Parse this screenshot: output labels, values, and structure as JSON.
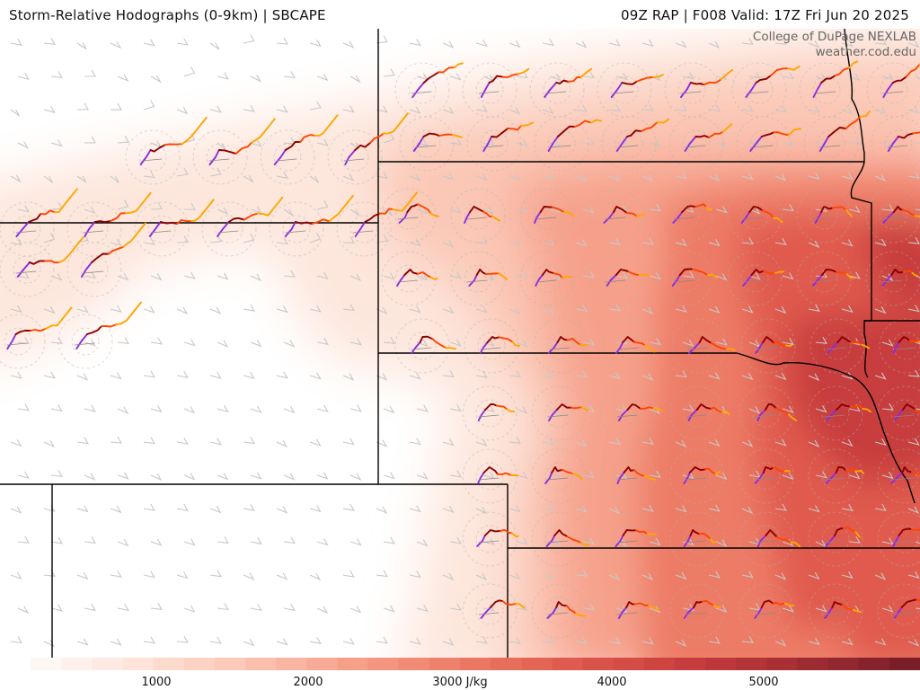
{
  "header": {
    "title": "Storm-Relative Hodographs (0-9km) | SBCAPE",
    "valid": "09Z RAP | F008 Valid: 17Z Fri Jun 20 2025"
  },
  "credit": {
    "line1": "College of DuPage NEXLAB",
    "line2": "weather.cod.edu"
  },
  "colorbar": {
    "min": 0,
    "max": 6000,
    "ticks": [
      {
        "value": 1000,
        "label": "1000"
      },
      {
        "value": 2000,
        "label": "2000"
      },
      {
        "value": 3000,
        "label": "3000 J/kg"
      },
      {
        "value": 4000,
        "label": "4000"
      },
      {
        "value": 5000,
        "label": "5000"
      }
    ],
    "colors": [
      "#ffffff",
      "#fde6dc",
      "#fbc8b6",
      "#f6a08a",
      "#ed7c66",
      "#e05a4e",
      "#c83e3e",
      "#a42e34",
      "#7a1e28"
    ]
  },
  "hodograph_colors": {
    "layer_0_1km": "#8b2be2",
    "layer_1_3km": "#8b0000",
    "layer_3_6km": "#ff4500",
    "layer_6_9km": "#ffa500"
  }
}
